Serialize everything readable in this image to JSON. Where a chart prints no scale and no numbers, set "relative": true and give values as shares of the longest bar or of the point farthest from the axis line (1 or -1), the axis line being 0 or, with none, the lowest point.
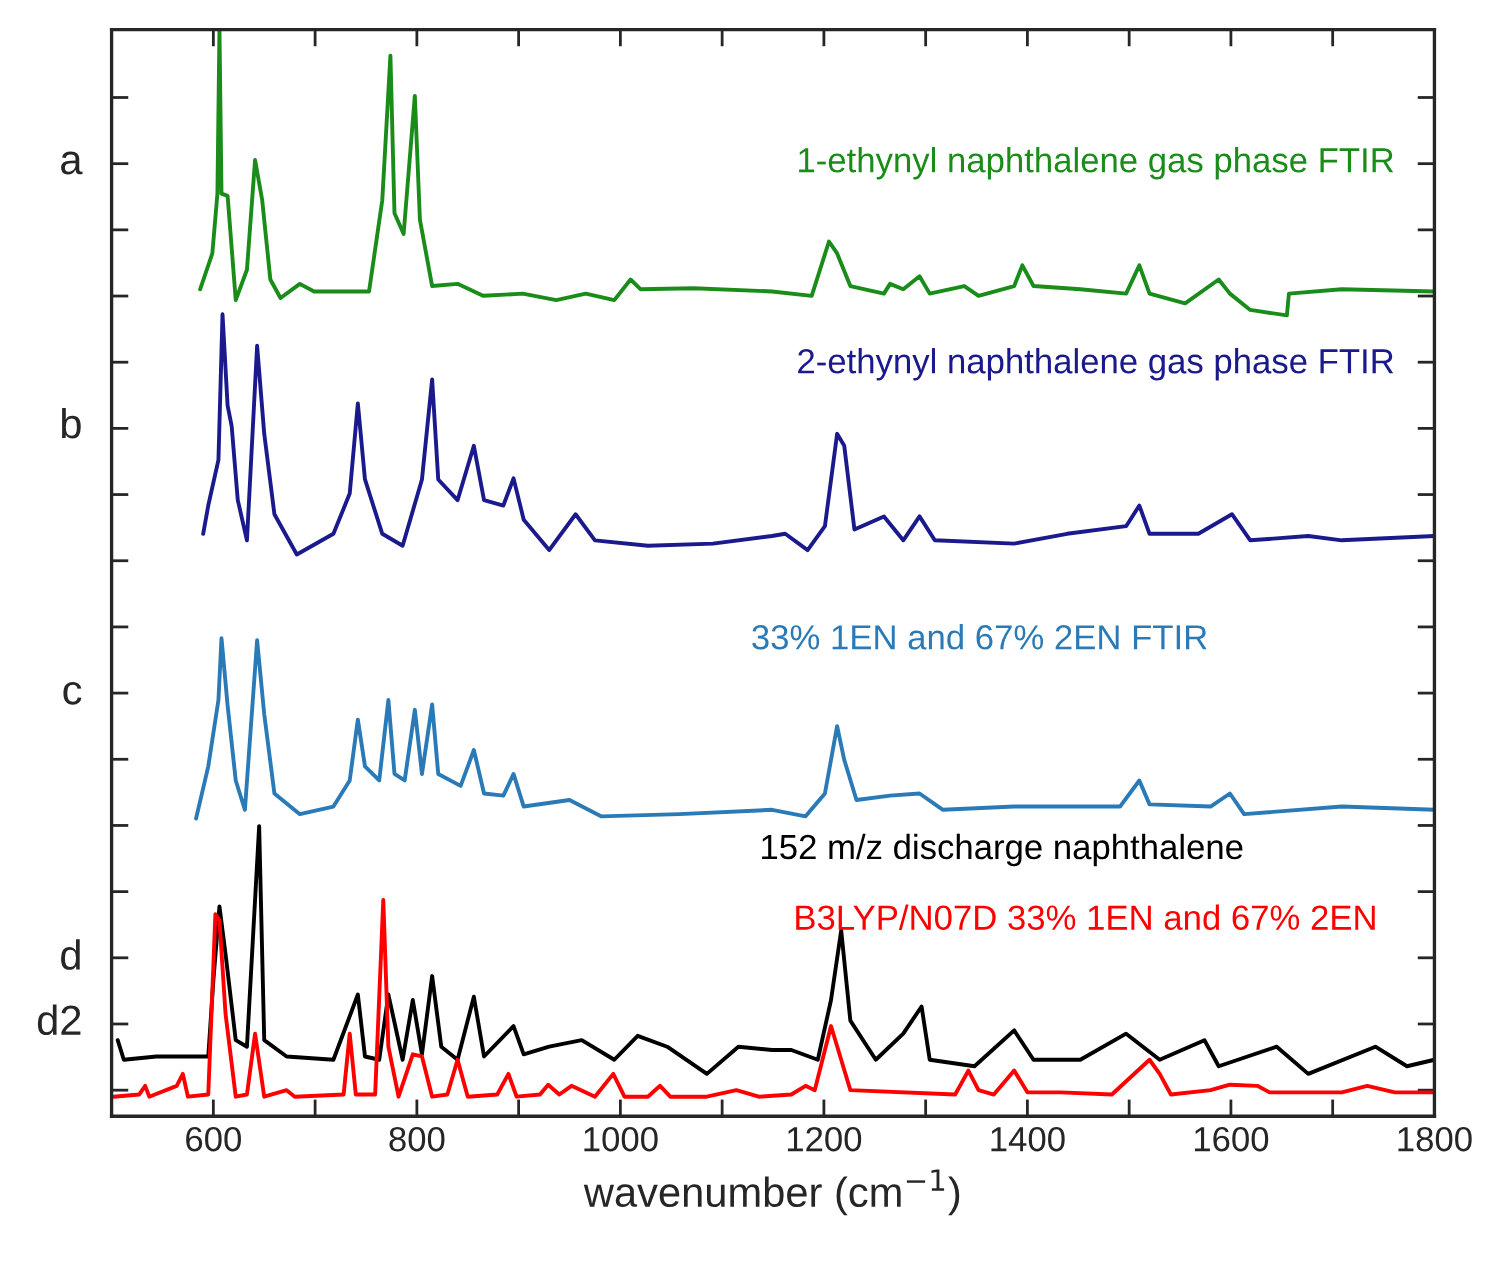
{
  "chart_data": {
    "type": "line",
    "relative": true,
    "xlabel": "wavenumber (cm$^{−1}$)",
    "legend": false,
    "xlim": [
      500,
      1800
    ],
    "xticks": [
      {
        "value": 500,
        "label": null
      },
      600,
      {
        "value": 700,
        "label": null
      },
      800,
      {
        "value": 900,
        "label": null
      },
      1000,
      {
        "value": 1100,
        "label": null
      },
      1200,
      {
        "value": 1300,
        "label": null
      },
      1400,
      {
        "value": 1500,
        "label": null
      },
      1600,
      {
        "value": 1700,
        "label": null
      },
      1800
    ],
    "annotations": [
      "a",
      "b",
      "c",
      "d",
      "d2"
    ],
    "series": [
      {
        "name": "1-ethynyl naphthalene gas phase FTIR",
        "color": "#1a8c1a",
        "x": [
          587,
          599,
          604,
          606,
          608,
          614,
          622,
          633,
          641,
          648,
          656,
          666,
          685,
          699,
          753,
          766,
          774,
          778,
          787,
          798,
          803,
          815,
          840,
          865,
          904,
          937,
          966,
          994,
          1010,
          1020,
          1072,
          1149,
          1188,
          1205,
          1213,
          1226,
          1259,
          1265,
          1278,
          1294,
          1304,
          1338,
          1352,
          1387,
          1395,
          1406,
          1452,
          1497,
          1510,
          1520,
          1555,
          1588,
          1599,
          1619,
          1655,
          1657,
          1709,
          1800
        ],
        "values": [
          0.761,
          0.794,
          0.849,
          1.0,
          0.849,
          0.847,
          0.751,
          0.779,
          0.88,
          0.843,
          0.77,
          0.753,
          0.766,
          0.759,
          0.759,
          0.843,
          0.976,
          0.831,
          0.812,
          0.939,
          0.825,
          0.764,
          0.766,
          0.755,
          0.757,
          0.751,
          0.757,
          0.751,
          0.77,
          0.761,
          0.762,
          0.759,
          0.755,
          0.805,
          0.794,
          0.764,
          0.757,
          0.766,
          0.761,
          0.773,
          0.757,
          0.764,
          0.755,
          0.764,
          0.783,
          0.764,
          0.761,
          0.757,
          0.783,
          0.757,
          0.748,
          0.77,
          0.757,
          0.742,
          0.737,
          0.757,
          0.761,
          0.759
        ]
      },
      {
        "name": "2-ethynyl naphthalene gas phase FTIR",
        "color": "#1a1a8c",
        "x": [
          590,
          595,
          605,
          609,
          614,
          618,
          624,
          633,
          643,
          650,
          660,
          682,
          718,
          734,
          742,
          749,
          766,
          786,
          805,
          815,
          821,
          840,
          856,
          866,
          885,
          895,
          905,
          930,
          956,
          975,
          1027,
          1091,
          1149,
          1162,
          1184,
          1201,
          1213,
          1220,
          1230,
          1259,
          1278,
          1294,
          1309,
          1387,
          1439,
          1497,
          1510,
          1520,
          1568,
          1601,
          1619,
          1676,
          1709,
          1800
        ],
        "values": [
          0.536,
          0.562,
          0.604,
          0.738,
          0.654,
          0.635,
          0.567,
          0.53,
          0.709,
          0.628,
          0.554,
          0.517,
          0.536,
          0.573,
          0.656,
          0.586,
          0.536,
          0.525,
          0.586,
          0.678,
          0.586,
          0.567,
          0.617,
          0.567,
          0.562,
          0.587,
          0.549,
          0.521,
          0.554,
          0.53,
          0.525,
          0.527,
          0.534,
          0.536,
          0.521,
          0.543,
          0.628,
          0.617,
          0.54,
          0.552,
          0.53,
          0.552,
          0.53,
          0.527,
          0.536,
          0.543,
          0.562,
          0.536,
          0.536,
          0.554,
          0.53,
          0.534,
          0.53,
          0.534
        ]
      },
      {
        "name": "33% 1EN and 67% 2EN FTIR",
        "color": "#2a7ab8",
        "x": [
          583,
          595,
          605,
          608,
          614,
          622,
          631,
          643,
          650,
          660,
          685,
          718,
          734,
          742,
          749,
          763,
          772,
          778,
          788,
          798,
          805,
          815,
          821,
          843,
          856,
          866,
          885,
          895,
          905,
          950,
          981,
          1058,
          1149,
          1182,
          1201,
          1213,
          1220,
          1232,
          1265,
          1294,
          1317,
          1387,
          1491,
          1510,
          1520,
          1580,
          1599,
          1613,
          1709,
          1800
        ],
        "values": [
          0.274,
          0.322,
          0.383,
          0.44,
          0.378,
          0.309,
          0.282,
          0.438,
          0.37,
          0.297,
          0.278,
          0.285,
          0.309,
          0.365,
          0.322,
          0.309,
          0.383,
          0.315,
          0.309,
          0.374,
          0.315,
          0.379,
          0.315,
          0.304,
          0.337,
          0.297,
          0.295,
          0.315,
          0.285,
          0.291,
          0.276,
          0.278,
          0.282,
          0.276,
          0.297,
          0.359,
          0.328,
          0.291,
          0.295,
          0.297,
          0.282,
          0.285,
          0.285,
          0.309,
          0.287,
          0.285,
          0.297,
          0.278,
          0.285,
          0.282
        ]
      },
      {
        "name": "152 m/z discharge naphthalene",
        "color": "#000000",
        "x": [
          506,
          512,
          544,
          595,
          600,
          606,
          612,
          622,
          633,
          645,
          650,
          672,
          718,
          742,
          749,
          763,
          772,
          786,
          796,
          805,
          815,
          824,
          840,
          856,
          866,
          895,
          905,
          930,
          962,
          994,
          1017,
          1046,
          1085,
          1116,
          1149,
          1168,
          1194,
          1207,
          1217,
          1226,
          1251,
          1278,
          1296,
          1304,
          1348,
          1387,
          1406,
          1452,
          1497,
          1530,
          1574,
          1588,
          1645,
          1676,
          1742,
          1773,
          1800
        ],
        "values": [
          0.07,
          0.052,
          0.055,
          0.055,
          0.125,
          0.193,
          0.149,
          0.07,
          0.064,
          0.267,
          0.07,
          0.055,
          0.052,
          0.112,
          0.055,
          0.052,
          0.112,
          0.052,
          0.107,
          0.057,
          0.129,
          0.064,
          0.052,
          0.11,
          0.055,
          0.083,
          0.057,
          0.064,
          0.07,
          0.052,
          0.074,
          0.064,
          0.039,
          0.064,
          0.061,
          0.061,
          0.052,
          0.107,
          0.171,
          0.088,
          0.052,
          0.076,
          0.101,
          0.052,
          0.046,
          0.079,
          0.052,
          0.052,
          0.076,
          0.052,
          0.07,
          0.046,
          0.064,
          0.039,
          0.064,
          0.046,
          0.052
        ]
      },
      {
        "name": "B3LYP/N07D 33% 1EN and 67% 2EN",
        "color": "#ff0000",
        "x": [
          502,
          527,
          533,
          537,
          564,
          570,
          575,
          595,
          602,
          606,
          612,
          622,
          633,
          641,
          650,
          672,
          680,
          728,
          734,
          740,
          759,
          767,
          772,
          782,
          796,
          805,
          815,
          830,
          840,
          850,
          879,
          890,
          898,
          921,
          929,
          940,
          952,
          975,
          993,
          1004,
          1027,
          1039,
          1049,
          1085,
          1114,
          1136,
          1168,
          1182,
          1191,
          1207,
          1217,
          1226,
          1329,
          1342,
          1352,
          1367,
          1387,
          1400,
          1414,
          1433,
          1483,
          1520,
          1530,
          1541,
          1580,
          1599,
          1626,
          1638,
          1709,
          1734,
          1761,
          1800
        ],
        "values": [
          0.018,
          0.02,
          0.028,
          0.018,
          0.028,
          0.039,
          0.018,
          0.02,
          0.186,
          0.18,
          0.094,
          0.018,
          0.02,
          0.076,
          0.018,
          0.024,
          0.018,
          0.02,
          0.076,
          0.02,
          0.02,
          0.199,
          0.064,
          0.018,
          0.057,
          0.055,
          0.018,
          0.02,
          0.052,
          0.018,
          0.02,
          0.039,
          0.018,
          0.02,
          0.029,
          0.02,
          0.028,
          0.018,
          0.039,
          0.018,
          0.018,
          0.028,
          0.018,
          0.018,
          0.024,
          0.018,
          0.02,
          0.028,
          0.024,
          0.083,
          0.052,
          0.024,
          0.02,
          0.042,
          0.024,
          0.02,
          0.042,
          0.022,
          0.022,
          0.022,
          0.02,
          0.052,
          0.039,
          0.02,
          0.024,
          0.029,
          0.028,
          0.022,
          0.022,
          0.028,
          0.022,
          0.022
        ]
      }
    ]
  }
}
